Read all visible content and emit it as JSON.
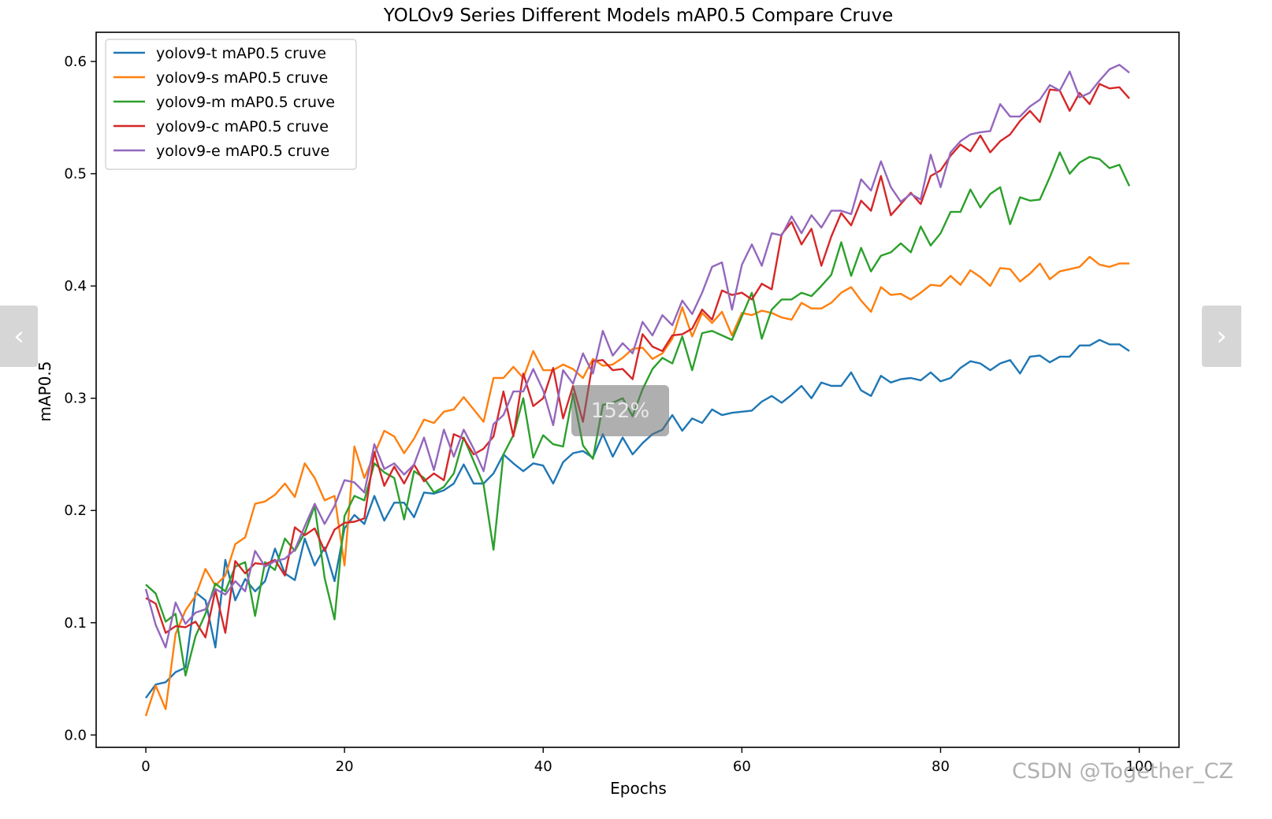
{
  "viewer": {
    "prev_icon": "chevron-left-icon",
    "next_icon": "chevron-right-icon",
    "zoom_level": "152%",
    "watermark": "CSDN @Together_CZ"
  },
  "chart_data": {
    "type": "line",
    "title": "YOLOv9 Series Different Models mAP0.5 Compare Cruve",
    "xlabel": "Epochs",
    "ylabel": "mAP0.5",
    "xlim": [
      -5,
      104
    ],
    "ylim": [
      -0.011,
      0.626
    ],
    "xticks": [
      0,
      20,
      40,
      60,
      80,
      100
    ],
    "xtick_labels": [
      "0",
      "20",
      "40",
      "60",
      "80",
      "100"
    ],
    "yticks": [
      0.0,
      0.1,
      0.2,
      0.3,
      0.4,
      0.5,
      0.6
    ],
    "ytick_labels": [
      "0.0",
      "0.1",
      "0.2",
      "0.3",
      "0.4",
      "0.5",
      "0.6"
    ],
    "grid": false,
    "legend": "top-left",
    "series": [
      {
        "name": "yolov9-t mAP0.5 cruve",
        "color": "#1f77b4",
        "values": [
          0.033,
          0.045,
          0.047,
          0.056,
          0.06,
          0.127,
          0.12,
          0.078,
          0.156,
          0.12,
          0.139,
          0.128,
          0.137,
          0.166,
          0.144,
          0.138,
          0.175,
          0.151,
          0.167,
          0.137,
          0.184,
          0.196,
          0.188,
          0.213,
          0.191,
          0.207,
          0.207,
          0.194,
          0.216,
          0.215,
          0.218,
          0.224,
          0.241,
          0.224,
          0.224,
          0.233,
          0.25,
          0.242,
          0.235,
          0.242,
          0.24,
          0.224,
          0.243,
          0.251,
          0.253,
          0.247,
          0.268,
          0.248,
          0.265,
          0.25,
          0.26,
          0.268,
          0.272,
          0.285,
          0.271,
          0.282,
          0.278,
          0.29,
          0.285,
          0.287,
          0.288,
          0.289,
          0.297,
          0.302,
          0.296,
          0.303,
          0.311,
          0.3,
          0.314,
          0.311,
          0.311,
          0.323,
          0.307,
          0.302,
          0.32,
          0.314,
          0.317,
          0.318,
          0.316,
          0.323,
          0.315,
          0.318,
          0.327,
          0.333,
          0.331,
          0.325,
          0.331,
          0.334,
          0.322,
          0.337,
          0.338,
          0.332,
          0.337,
          0.337,
          0.347,
          0.347,
          0.352,
          0.348,
          0.348,
          0.342
        ]
      },
      {
        "name": "yolov9-s mAP0.5 cruve",
        "color": "#ff7f0e",
        "values": [
          0.017,
          0.044,
          0.023,
          0.09,
          0.111,
          0.124,
          0.148,
          0.133,
          0.142,
          0.17,
          0.176,
          0.206,
          0.208,
          0.214,
          0.224,
          0.212,
          0.242,
          0.229,
          0.209,
          0.213,
          0.151,
          0.257,
          0.229,
          0.25,
          0.271,
          0.266,
          0.251,
          0.264,
          0.281,
          0.278,
          0.288,
          0.29,
          0.301,
          0.29,
          0.279,
          0.318,
          0.318,
          0.328,
          0.318,
          0.342,
          0.325,
          0.325,
          0.33,
          0.326,
          0.318,
          0.335,
          0.329,
          0.33,
          0.336,
          0.344,
          0.345,
          0.335,
          0.34,
          0.353,
          0.381,
          0.355,
          0.376,
          0.367,
          0.377,
          0.356,
          0.376,
          0.374,
          0.378,
          0.376,
          0.372,
          0.37,
          0.385,
          0.38,
          0.38,
          0.385,
          0.394,
          0.399,
          0.387,
          0.377,
          0.399,
          0.392,
          0.393,
          0.388,
          0.394,
          0.401,
          0.4,
          0.409,
          0.401,
          0.414,
          0.408,
          0.4,
          0.416,
          0.415,
          0.404,
          0.411,
          0.42,
          0.406,
          0.413,
          0.415,
          0.417,
          0.426,
          0.419,
          0.417,
          0.42,
          0.42
        ]
      },
      {
        "name": "yolov9-m mAP0.5 cruve",
        "color": "#2ca02c",
        "values": [
          0.134,
          0.126,
          0.101,
          0.108,
          0.053,
          0.088,
          0.108,
          0.135,
          0.128,
          0.15,
          0.154,
          0.106,
          0.154,
          0.147,
          0.175,
          0.164,
          0.18,
          0.204,
          0.14,
          0.103,
          0.195,
          0.213,
          0.209,
          0.242,
          0.234,
          0.229,
          0.192,
          0.235,
          0.229,
          0.216,
          0.221,
          0.233,
          0.265,
          0.244,
          0.223,
          0.165,
          0.25,
          0.267,
          0.3,
          0.247,
          0.267,
          0.259,
          0.257,
          0.304,
          0.258,
          0.246,
          0.294,
          0.296,
          0.3,
          0.284,
          0.308,
          0.326,
          0.336,
          0.331,
          0.355,
          0.325,
          0.358,
          0.36,
          0.356,
          0.352,
          0.373,
          0.394,
          0.353,
          0.379,
          0.388,
          0.388,
          0.394,
          0.391,
          0.4,
          0.41,
          0.439,
          0.409,
          0.434,
          0.413,
          0.427,
          0.43,
          0.438,
          0.43,
          0.453,
          0.436,
          0.447,
          0.466,
          0.466,
          0.486,
          0.47,
          0.482,
          0.488,
          0.455,
          0.479,
          0.476,
          0.477,
          0.497,
          0.519,
          0.5,
          0.51,
          0.515,
          0.513,
          0.505,
          0.508,
          0.489
        ]
      },
      {
        "name": "yolov9-c mAP0.5 cruve",
        "color": "#d62728",
        "values": [
          0.122,
          0.117,
          0.091,
          0.097,
          0.096,
          0.101,
          0.087,
          0.129,
          0.091,
          0.155,
          0.144,
          0.153,
          0.152,
          0.156,
          0.142,
          0.185,
          0.178,
          0.184,
          0.164,
          0.183,
          0.189,
          0.19,
          0.193,
          0.252,
          0.222,
          0.239,
          0.224,
          0.241,
          0.226,
          0.233,
          0.227,
          0.268,
          0.264,
          0.25,
          0.255,
          0.266,
          0.306,
          0.266,
          0.322,
          0.293,
          0.3,
          0.327,
          0.282,
          0.311,
          0.279,
          0.333,
          0.334,
          0.325,
          0.326,
          0.317,
          0.357,
          0.346,
          0.342,
          0.356,
          0.357,
          0.362,
          0.379,
          0.37,
          0.396,
          0.392,
          0.394,
          0.388,
          0.402,
          0.397,
          0.446,
          0.457,
          0.437,
          0.451,
          0.418,
          0.444,
          0.465,
          0.454,
          0.476,
          0.467,
          0.498,
          0.463,
          0.473,
          0.483,
          0.473,
          0.498,
          0.503,
          0.516,
          0.526,
          0.52,
          0.534,
          0.519,
          0.529,
          0.535,
          0.547,
          0.556,
          0.546,
          0.575,
          0.574,
          0.556,
          0.572,
          0.562,
          0.58,
          0.576,
          0.577,
          0.567
        ]
      },
      {
        "name": "yolov9-e mAP0.5 cruve",
        "color": "#9467bd",
        "values": [
          0.13,
          0.098,
          0.078,
          0.118,
          0.099,
          0.109,
          0.112,
          0.13,
          0.125,
          0.137,
          0.128,
          0.164,
          0.15,
          0.155,
          0.157,
          0.165,
          0.186,
          0.206,
          0.188,
          0.204,
          0.227,
          0.225,
          0.216,
          0.259,
          0.237,
          0.242,
          0.232,
          0.241,
          0.265,
          0.236,
          0.272,
          0.248,
          0.272,
          0.255,
          0.235,
          0.277,
          0.285,
          0.306,
          0.306,
          0.326,
          0.307,
          0.276,
          0.325,
          0.313,
          0.34,
          0.322,
          0.36,
          0.338,
          0.349,
          0.34,
          0.368,
          0.356,
          0.374,
          0.365,
          0.387,
          0.375,
          0.394,
          0.417,
          0.421,
          0.379,
          0.419,
          0.437,
          0.418,
          0.447,
          0.445,
          0.462,
          0.447,
          0.463,
          0.452,
          0.467,
          0.467,
          0.464,
          0.495,
          0.485,
          0.511,
          0.488,
          0.475,
          0.482,
          0.477,
          0.517,
          0.488,
          0.519,
          0.529,
          0.535,
          0.537,
          0.538,
          0.562,
          0.551,
          0.551,
          0.56,
          0.566,
          0.579,
          0.574,
          0.591,
          0.568,
          0.572,
          0.583,
          0.593,
          0.597,
          0.59
        ]
      }
    ]
  }
}
